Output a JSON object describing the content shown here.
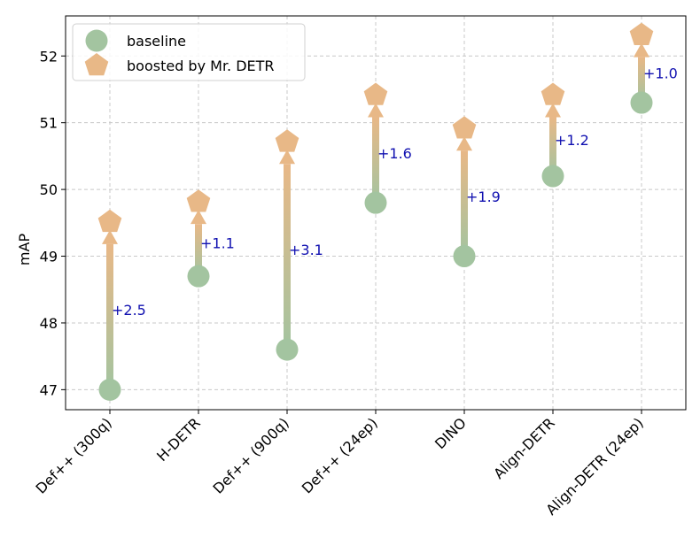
{
  "chart_data": {
    "type": "scatter",
    "title": "",
    "xlabel": "",
    "ylabel": "mAP",
    "ylim": [
      46.7,
      52.6
    ],
    "yticks": [
      47,
      48,
      49,
      50,
      51,
      52
    ],
    "grid": true,
    "legend_position": "top-left",
    "categories": [
      "Def++ (300q)",
      "H-DETR",
      "Def++ (900q)",
      "Def++ (24ep)",
      "DINO",
      "Align-DETR",
      "Align-DETR (24ep)"
    ],
    "series": [
      {
        "name": "baseline",
        "marker": "circle",
        "color": "#a3c4a0",
        "values": [
          47.0,
          48.7,
          47.6,
          49.8,
          49.0,
          50.2,
          51.3
        ]
      },
      {
        "name": "boosted by Mr. DETR",
        "marker": "pentagon",
        "color": "#e8b887",
        "values": [
          49.5,
          49.8,
          50.7,
          51.4,
          50.9,
          51.4,
          52.3
        ]
      }
    ],
    "annotations": [
      "+2.5",
      "+1.1",
      "+3.1",
      "+1.6",
      "+1.9",
      "+1.2",
      "+1.0"
    ],
    "colors": {
      "arrow_start": "#a3c4a0",
      "arrow_end": "#e8b887",
      "annotation": "#1010b0"
    }
  }
}
